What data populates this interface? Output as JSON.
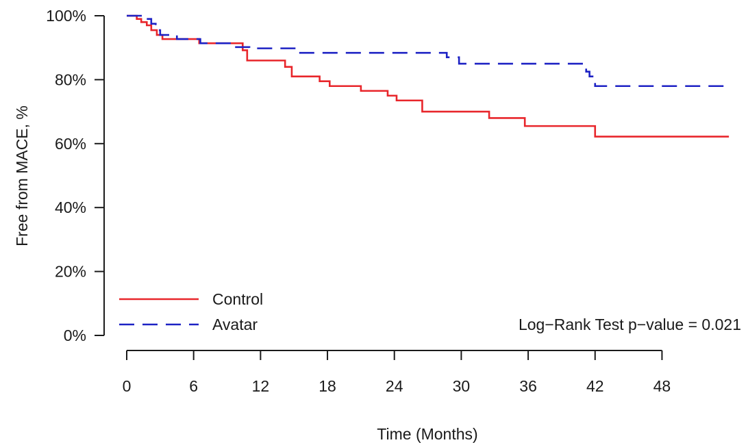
{
  "chart_data": {
    "type": "line",
    "step": true,
    "xlabel": "Time (Months)",
    "ylabel": "Free from MACE, %",
    "xlim": [
      0,
      54
    ],
    "ylim": [
      0,
      100
    ],
    "x_ticks": [
      0,
      6,
      12,
      18,
      24,
      30,
      36,
      42,
      48
    ],
    "x_tick_labels": [
      "0",
      "6",
      "12",
      "18",
      "24",
      "30",
      "36",
      "42",
      "48"
    ],
    "y_ticks": [
      0,
      20,
      40,
      60,
      80,
      100
    ],
    "y_tick_labels": [
      "0%",
      "20%",
      "40%",
      "60%",
      "80%",
      "100%"
    ],
    "grid": false,
    "legend_position": "bottom-left",
    "annotation": "Log−Rank Test p−value = 0.021",
    "series": [
      {
        "name": "Control",
        "color": "#e8262b",
        "dash": "solid",
        "points": [
          [
            0,
            100
          ],
          [
            0.9,
            99
          ],
          [
            1.3,
            98
          ],
          [
            1.8,
            97
          ],
          [
            2.2,
            95.5
          ],
          [
            2.7,
            94
          ],
          [
            3.2,
            92.7
          ],
          [
            6.5,
            91.4
          ],
          [
            10.4,
            89.2
          ],
          [
            10.8,
            86
          ],
          [
            14.2,
            84
          ],
          [
            14.8,
            81
          ],
          [
            17.3,
            79.5
          ],
          [
            18.2,
            78
          ],
          [
            21,
            76.5
          ],
          [
            23.4,
            75
          ],
          [
            24.2,
            73.5
          ],
          [
            26.5,
            70
          ],
          [
            32.5,
            68
          ],
          [
            35.7,
            65.5
          ],
          [
            42,
            62.2
          ],
          [
            54,
            62.2
          ]
        ]
      },
      {
        "name": "Avatar",
        "color": "#1d22c4",
        "dash": "dashed",
        "points": [
          [
            0,
            100
          ],
          [
            1.8,
            99
          ],
          [
            2.2,
            97.5
          ],
          [
            2.6,
            95.5
          ],
          [
            3.0,
            94
          ],
          [
            4.5,
            92.7
          ],
          [
            6.6,
            91.4
          ],
          [
            9.6,
            90.2
          ],
          [
            11,
            89.8
          ],
          [
            15.3,
            88.4
          ],
          [
            28.7,
            87
          ],
          [
            29.8,
            85
          ],
          [
            41.2,
            82.5
          ],
          [
            41.5,
            81
          ],
          [
            42,
            78
          ],
          [
            54,
            78
          ]
        ]
      }
    ]
  }
}
